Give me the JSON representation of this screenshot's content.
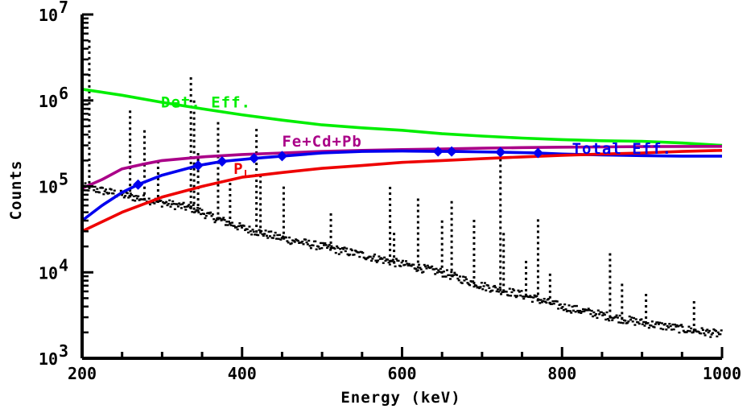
{
  "chart_data": {
    "type": "scatter",
    "xlabel": "Energy (keV)",
    "ylabel": "Counts",
    "xlim": [
      200,
      1000
    ],
    "ylim": [
      1000,
      10000000
    ],
    "y_scale": "log",
    "grid": false,
    "x_ticks": [
      {
        "value": 200,
        "label": "200"
      },
      {
        "value": 400,
        "label": "400"
      },
      {
        "value": 600,
        "label": "600"
      },
      {
        "value": 800,
        "label": "800"
      },
      {
        "value": 1000,
        "label": "1000"
      }
    ],
    "y_ticks": [
      {
        "value": 1000,
        "base": "10",
        "exp": "3"
      },
      {
        "value": 10000,
        "base": "10",
        "exp": "4"
      },
      {
        "value": 100000,
        "base": "10",
        "exp": "5"
      },
      {
        "value": 1000000,
        "base": "10",
        "exp": "6"
      },
      {
        "value": 10000000,
        "base": "10",
        "exp": "7"
      }
    ],
    "spectrum": {
      "color": "#000000",
      "continuum": [
        [
          200,
          100000
        ],
        [
          250,
          80000
        ],
        [
          300,
          65000
        ],
        [
          340,
          55000
        ],
        [
          360,
          45000
        ],
        [
          400,
          33000
        ],
        [
          450,
          25000
        ],
        [
          500,
          20000
        ],
        [
          550,
          16000
        ],
        [
          600,
          12500
        ],
        [
          650,
          10000
        ],
        [
          700,
          7000
        ],
        [
          750,
          5500
        ],
        [
          800,
          4000
        ],
        [
          850,
          3200
        ],
        [
          900,
          2600
        ],
        [
          950,
          2200
        ],
        [
          1000,
          1900
        ]
      ],
      "peaks": [
        {
          "x": 209,
          "y": 5000000
        },
        {
          "x": 237,
          "y": 80000
        },
        {
          "x": 255,
          "y": 60000
        },
        {
          "x": 260,
          "y": 800000
        },
        {
          "x": 278,
          "y": 450000
        },
        {
          "x": 295,
          "y": 200000
        },
        {
          "x": 336,
          "y": 1900000
        },
        {
          "x": 340,
          "y": 1000000
        },
        {
          "x": 345,
          "y": 250000
        },
        {
          "x": 370,
          "y": 600000
        },
        {
          "x": 385,
          "y": 120000
        },
        {
          "x": 418,
          "y": 500000
        },
        {
          "x": 423,
          "y": 150000
        },
        {
          "x": 452,
          "y": 100000
        },
        {
          "x": 511,
          "y": 50000
        },
        {
          "x": 585,
          "y": 100000
        },
        {
          "x": 590,
          "y": 30000
        },
        {
          "x": 620,
          "y": 80000
        },
        {
          "x": 650,
          "y": 40000
        },
        {
          "x": 662,
          "y": 70000
        },
        {
          "x": 690,
          "y": 45000
        },
        {
          "x": 723,
          "y": 250000
        },
        {
          "x": 727,
          "y": 30000
        },
        {
          "x": 755,
          "y": 15000
        },
        {
          "x": 770,
          "y": 45000
        },
        {
          "x": 785,
          "y": 10000
        },
        {
          "x": 860,
          "y": 18000
        },
        {
          "x": 875,
          "y": 8000
        },
        {
          "x": 905,
          "y": 6000
        },
        {
          "x": 965,
          "y": 5000
        }
      ]
    },
    "series": [
      {
        "name": "Det. Eff.",
        "color": "#00ee00",
        "points": [
          [
            200,
            1350000
          ],
          [
            250,
            1150000
          ],
          [
            300,
            950000
          ],
          [
            350,
            800000
          ],
          [
            400,
            680000
          ],
          [
            450,
            590000
          ],
          [
            500,
            520000
          ],
          [
            550,
            480000
          ],
          [
            600,
            450000
          ],
          [
            650,
            410000
          ],
          [
            700,
            385000
          ],
          [
            750,
            365000
          ],
          [
            800,
            350000
          ],
          [
            850,
            340000
          ],
          [
            900,
            335000
          ],
          [
            950,
            320000
          ],
          [
            1000,
            300000
          ]
        ]
      },
      {
        "name": "Fe+Cd+Pb",
        "color": "#aa0088",
        "points": [
          [
            200,
            95000
          ],
          [
            225,
            120000
          ],
          [
            250,
            160000
          ],
          [
            275,
            180000
          ],
          [
            300,
            200000
          ],
          [
            350,
            220000
          ],
          [
            400,
            235000
          ],
          [
            450,
            245000
          ],
          [
            500,
            255000
          ],
          [
            550,
            262000
          ],
          [
            600,
            268000
          ],
          [
            650,
            272000
          ],
          [
            700,
            278000
          ],
          [
            750,
            283000
          ],
          [
            800,
            286000
          ],
          [
            850,
            288000
          ],
          [
            900,
            290000
          ],
          [
            1000,
            292000
          ]
        ]
      },
      {
        "name": "Total Eff.",
        "color": "#0000ee",
        "points": [
          [
            200,
            40000
          ],
          [
            225,
            60000
          ],
          [
            250,
            85000
          ],
          [
            270,
            105000
          ],
          [
            300,
            135000
          ],
          [
            345,
            175000
          ],
          [
            375,
            195000
          ],
          [
            415,
            212000
          ],
          [
            450,
            225000
          ],
          [
            500,
            245000
          ],
          [
            550,
            255000
          ],
          [
            600,
            258000
          ],
          [
            645,
            255000
          ],
          [
            662,
            255000
          ],
          [
            723,
            250000
          ],
          [
            770,
            245000
          ],
          [
            800,
            238000
          ],
          [
            850,
            232000
          ],
          [
            900,
            228000
          ],
          [
            950,
            225000
          ],
          [
            1000,
            225000
          ]
        ]
      },
      {
        "name": "P_L",
        "color": "#ee0000",
        "points": [
          [
            200,
            30000
          ],
          [
            250,
            50000
          ],
          [
            300,
            75000
          ],
          [
            350,
            100000
          ],
          [
            400,
            128000
          ],
          [
            450,
            145000
          ],
          [
            500,
            162000
          ],
          [
            550,
            175000
          ],
          [
            600,
            190000
          ],
          [
            650,
            200000
          ],
          [
            700,
            210000
          ],
          [
            750,
            220000
          ],
          [
            800,
            230000
          ],
          [
            850,
            238000
          ],
          [
            900,
            245000
          ],
          [
            950,
            255000
          ],
          [
            1000,
            262000
          ]
        ]
      }
    ],
    "markers": {
      "series": "Total Eff.",
      "color": "#0000ee",
      "points": [
        [
          270,
          105000
        ],
        [
          345,
          175000
        ],
        [
          375,
          195000
        ],
        [
          415,
          212000
        ],
        [
          450,
          225000
        ],
        [
          645,
          255000
        ],
        [
          662,
          255000
        ],
        [
          723,
          250000
        ],
        [
          770,
          245000
        ]
      ]
    },
    "annotations": [
      {
        "text": "Det. Eff.",
        "color": "#00ee00",
        "x": 355,
        "y": 830000
      },
      {
        "text": "Fe+Cd+Pb",
        "color": "#aa0088",
        "x": 500,
        "y": 290000
      },
      {
        "text": "Total Eff.",
        "color": "#0000ee",
        "x": 875,
        "y": 240000
      },
      {
        "text": "P",
        "sub": "L",
        "color": "#ee0000",
        "x": 400,
        "y": 140000
      }
    ]
  }
}
